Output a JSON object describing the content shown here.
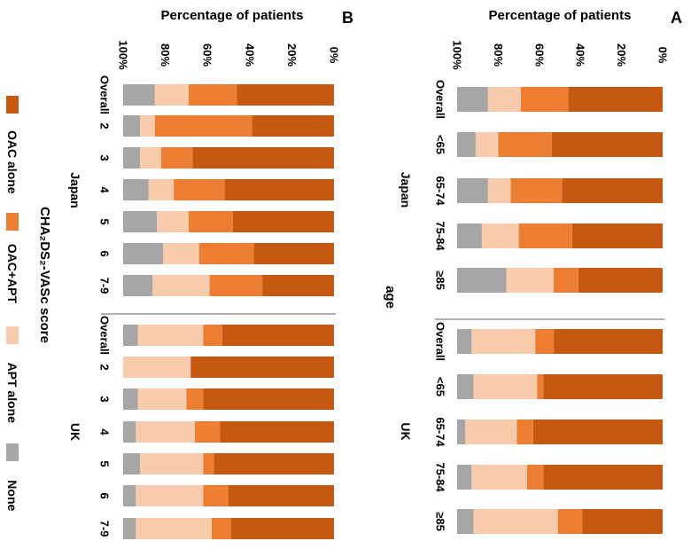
{
  "colors": {
    "oac_alone": "#C65911",
    "oac_apt": "#ED7D31",
    "apt_alone": "#F8CBAD",
    "none": "#A6A6A6",
    "divider": "#7F7F7F"
  },
  "common": {
    "axis_title": "Percentage of patients",
    "ticks": [
      "0%",
      "20%",
      "40%",
      "60%",
      "80%",
      "100%"
    ],
    "legend": [
      "OAC alone",
      "OAC+APT",
      "APT alone",
      "None"
    ]
  },
  "chart_data": [
    {
      "type": "bar",
      "stacked": true,
      "orientation": "horizontal",
      "panel_label": "A",
      "ylabel": "Percentage of patients",
      "xlabel": "age",
      "ylim": [
        0,
        100
      ],
      "groups": [
        {
          "name": "Japan",
          "categories": [
            "Overall",
            "<65",
            "65-74",
            "75-84",
            "≥85"
          ]
        },
        {
          "name": "UK",
          "categories": [
            "Overall",
            "<65",
            "65-74",
            "75-84",
            "≥85"
          ]
        }
      ],
      "series": [
        {
          "name": "OAC alone",
          "values": [
            46,
            54,
            49,
            44,
            41,
            53,
            58,
            63,
            58,
            39
          ]
        },
        {
          "name": "OAC+APT",
          "values": [
            23,
            26,
            25,
            26,
            12,
            9,
            3,
            8,
            8,
            12
          ]
        },
        {
          "name": "APT alone",
          "values": [
            16,
            11,
            11,
            18,
            23,
            31,
            31,
            25,
            27,
            41
          ]
        },
        {
          "name": "None",
          "values": [
            15,
            9,
            15,
            12,
            24,
            7,
            8,
            4,
            7,
            8
          ]
        }
      ]
    },
    {
      "type": "bar",
      "stacked": true,
      "orientation": "horizontal",
      "panel_label": "B",
      "ylabel": "Percentage of patients",
      "xlabel": "CHA₂DS₂-VASc score",
      "ylim": [
        0,
        100
      ],
      "groups": [
        {
          "name": "Japan",
          "categories": [
            "Overall",
            "2",
            "3",
            "4",
            "5",
            "6",
            "7-9"
          ]
        },
        {
          "name": "UK",
          "categories": [
            "Overall",
            "2",
            "3",
            "4",
            "5",
            "6",
            "7-9"
          ]
        }
      ],
      "series": [
        {
          "name": "OAC alone",
          "values": [
            46,
            39,
            67,
            52,
            48,
            38,
            34,
            53,
            68,
            62,
            54,
            57,
            50,
            49
          ]
        },
        {
          "name": "OAC+APT",
          "values": [
            23,
            46,
            15,
            24,
            21,
            26,
            25,
            9,
            0,
            8,
            12,
            5,
            12,
            9
          ]
        },
        {
          "name": "APT alone",
          "values": [
            16,
            7,
            10,
            12,
            15,
            17,
            27,
            31,
            32,
            23,
            28,
            30,
            32,
            36
          ]
        },
        {
          "name": "None",
          "values": [
            15,
            8,
            8,
            12,
            16,
            19,
            14,
            7,
            0,
            7,
            6,
            8,
            6,
            6
          ]
        }
      ]
    }
  ]
}
